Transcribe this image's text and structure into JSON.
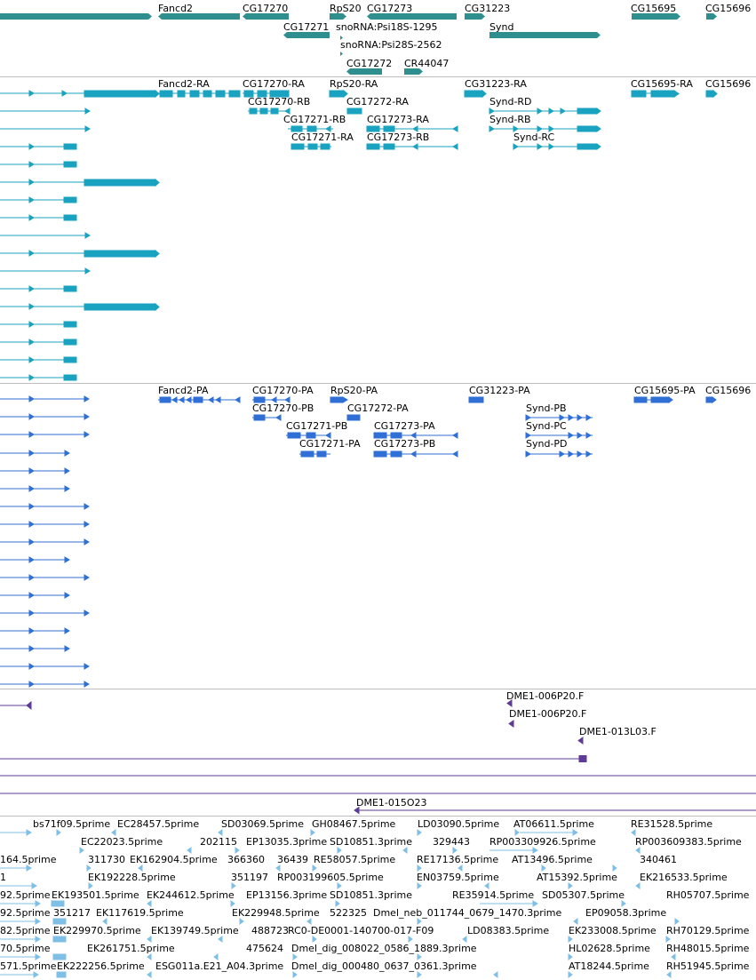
{
  "colors": {
    "genes": "#2f8f8f",
    "transcripts": "#1aa3c0",
    "proteins": "#2f6fd6",
    "bac": "#5e3b96",
    "est": "#7fbfe6",
    "separator": "#bdbdbd"
  },
  "tracks": {
    "genes": {
      "name": "gene-track",
      "features": [
        {
          "id": "g-fancd2",
          "label": "Fancd2",
          "type": "gene"
        },
        {
          "id": "g-cg17270",
          "label": "CG17270",
          "type": "gene"
        },
        {
          "id": "g-rps20",
          "label": "RpS20",
          "type": "gene"
        },
        {
          "id": "g-cg17273",
          "label": "CG17273",
          "type": "gene"
        },
        {
          "id": "g-cg31223",
          "label": "CG31223",
          "type": "gene"
        },
        {
          "id": "g-cg15695",
          "label": "CG15695",
          "type": "gene"
        },
        {
          "id": "g-cg15696",
          "label": "CG15696",
          "type": "gene"
        },
        {
          "id": "g-cg17271",
          "label": "CG17271",
          "type": "gene"
        },
        {
          "id": "g-snorna-psi18s",
          "label": "snoRNA:Psi18S-1295",
          "type": "gene"
        },
        {
          "id": "g-synd",
          "label": "Synd",
          "type": "gene"
        },
        {
          "id": "g-snorna-psi28s",
          "label": "snoRNA:Psi28S-2562",
          "type": "gene"
        },
        {
          "id": "g-cg17272",
          "label": "CG17272",
          "type": "gene"
        },
        {
          "id": "g-cr44047",
          "label": "CR44047",
          "type": "gene"
        }
      ]
    },
    "transcripts": {
      "name": "transcript-track",
      "features": [
        {
          "label": "Fancd2-RA"
        },
        {
          "label": "CG17270-RA"
        },
        {
          "label": "RpS20-RA"
        },
        {
          "label": "CG31223-RA"
        },
        {
          "label": "CG15695-RA"
        },
        {
          "label": "CG15696"
        },
        {
          "label": "CG17270-RB"
        },
        {
          "label": "CG17272-RA"
        },
        {
          "label": "Synd-RD"
        },
        {
          "label": "CG17271-RB"
        },
        {
          "label": "CG17273-RA"
        },
        {
          "label": "Synd-RB"
        },
        {
          "label": "CG17271-RA"
        },
        {
          "label": "CG17273-RB"
        },
        {
          "label": "Synd-RC"
        }
      ]
    },
    "proteins": {
      "name": "protein-track",
      "features": [
        {
          "label": "Fancd2-PA"
        },
        {
          "label": "CG17270-PA"
        },
        {
          "label": "RpS20-PA"
        },
        {
          "label": "CG31223-PA"
        },
        {
          "label": "CG15695-PA"
        },
        {
          "label": "CG15696"
        },
        {
          "label": "CG17270-PB"
        },
        {
          "label": "CG17272-PA"
        },
        {
          "label": "Synd-PB"
        },
        {
          "label": "CG17271-PB"
        },
        {
          "label": "CG17273-PA"
        },
        {
          "label": "Synd-PC"
        },
        {
          "label": "CG17271-PA"
        },
        {
          "label": "CG17273-PB"
        },
        {
          "label": "Synd-PD"
        }
      ]
    },
    "bac": {
      "name": "bac-end-track",
      "features": [
        {
          "label": "DME1-006P20.F"
        },
        {
          "label": "DME1-006P20.F"
        },
        {
          "label": "DME1-013L03.F"
        },
        {
          "label": "DME1-015O23"
        }
      ]
    },
    "est": {
      "name": "est-track",
      "rows": [
        [
          "bs71f09.5prime",
          "EC28457.5prime",
          "SD03069.5prime",
          "GH08467.5prime",
          "LD03090.5prime",
          "AT06611.5prime",
          "RE31528.5prime"
        ],
        [
          "EC22023.5prime",
          "202115",
          "EP13035.3prime",
          "SD10851.3prime",
          "329443",
          "RP003309926.5prime",
          "RP003609383.5prime"
        ],
        [
          "164.5prime",
          "311730",
          "EK162904.5prime",
          "366360",
          "36439",
          "RE58057.5prime",
          "RE17136.5prime",
          "AT13496.5prime",
          "340461"
        ],
        [
          "1",
          "EK192228.5prime",
          "351197",
          "RP003199605.5prime",
          "EN03759.5prime",
          "AT15392.5prime",
          "EK216533.5prime"
        ],
        [
          "92.5prime",
          "EK193501.5prime",
          "EK244612.5prime",
          "EP13156.3prime",
          "SD10851.3prime",
          "RE35914.5prime",
          "SD05307.5prime",
          "RH05707.5prime"
        ],
        [
          "92.5prime",
          "351217",
          "EK117619.5prime",
          "EK229948.5prime",
          "522325",
          "Dmel_neb_011744_0679_1470.3prime",
          "EP09058.3prime"
        ],
        [
          "82.5prime",
          "EK229970.5prime",
          "EK139749.5prime",
          "488723",
          "RC0-DE0001-140700-017-F09",
          "LD08383.5prime",
          "EK233008.5prime",
          "RH70129.5prime"
        ],
        [
          "70.5prime",
          "EK261751.5prime",
          "475624",
          "Dmel_dig_008022_0586_1889.3prime",
          "HL02628.5prime",
          "RH48015.5prime"
        ],
        [
          "571.5prime",
          "EK222256.5prime",
          "ESG011a.E21_A04.3prime",
          "Dmel_dig_000480_0637_0361.3prime",
          "AT18244.5prime",
          "RH51945.5prime"
        ]
      ]
    }
  }
}
